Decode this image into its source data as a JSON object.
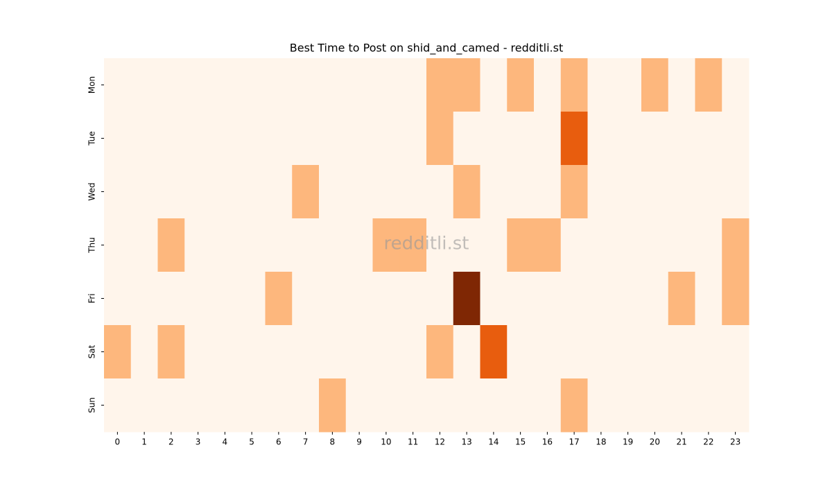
{
  "chart_data": {
    "type": "heatmap",
    "title": "Best Time to Post on shid_and_camed - redditli.st",
    "watermark": "redditli.st",
    "x": [
      0,
      1,
      2,
      3,
      4,
      5,
      6,
      7,
      8,
      9,
      10,
      11,
      12,
      13,
      14,
      15,
      16,
      17,
      18,
      19,
      20,
      21,
      22,
      23
    ],
    "y": [
      "Mon",
      "Tue",
      "Wed",
      "Thu",
      "Fri",
      "Sat",
      "Sun"
    ],
    "values": [
      [
        0,
        0,
        0,
        0,
        0,
        0,
        0,
        0,
        0,
        0,
        0,
        0,
        1,
        1,
        0,
        1,
        0,
        1,
        0,
        0,
        1,
        0,
        1,
        0
      ],
      [
        0,
        0,
        0,
        0,
        0,
        0,
        0,
        0,
        0,
        0,
        0,
        0,
        1,
        0,
        0,
        0,
        0,
        2,
        0,
        0,
        0,
        0,
        0,
        0
      ],
      [
        0,
        0,
        0,
        0,
        0,
        0,
        0,
        1,
        0,
        0,
        0,
        0,
        0,
        1,
        0,
        0,
        0,
        1,
        0,
        0,
        0,
        0,
        0,
        0
      ],
      [
        0,
        0,
        1,
        0,
        0,
        0,
        0,
        0,
        0,
        0,
        1,
        1,
        0,
        0,
        0,
        1,
        1,
        0,
        0,
        0,
        0,
        0,
        0,
        1
      ],
      [
        0,
        0,
        0,
        0,
        0,
        0,
        1,
        0,
        0,
        0,
        0,
        0,
        0,
        3,
        0,
        0,
        0,
        0,
        0,
        0,
        0,
        1,
        0,
        1
      ],
      [
        1,
        0,
        1,
        0,
        0,
        0,
        0,
        0,
        0,
        0,
        0,
        0,
        1,
        0,
        2,
        0,
        0,
        0,
        0,
        0,
        0,
        0,
        0,
        0
      ],
      [
        0,
        0,
        0,
        0,
        0,
        0,
        0,
        0,
        1,
        0,
        0,
        0,
        0,
        0,
        0,
        0,
        0,
        1,
        0,
        0,
        0,
        0,
        0,
        0
      ]
    ],
    "zlim": [
      0,
      3
    ],
    "colorscale": [
      "#fff5eb",
      "#fdb77d",
      "#e85d0e",
      "#7f2704"
    ]
  }
}
